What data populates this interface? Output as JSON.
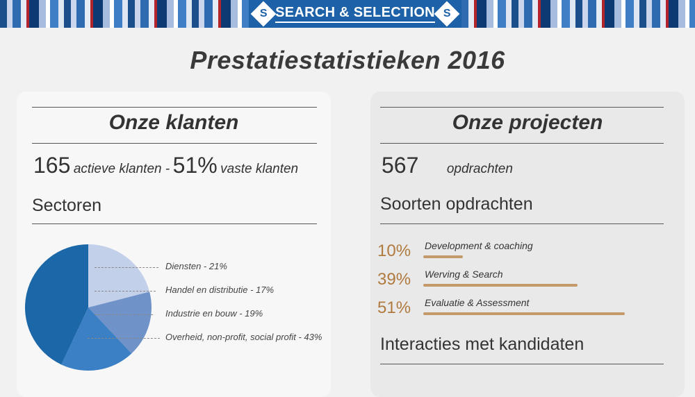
{
  "header": {
    "logo_text": "SEARCH & SELECTION",
    "logo_mark": "S",
    "logo_mark_icon": "diamond-s-icon"
  },
  "page_title": "Prestatiestatistieken 2016",
  "clients": {
    "title": "Onze klanten",
    "active_count": "165",
    "active_label": "actieve klanten -",
    "fixed_pct": "51%",
    "fixed_label": "vaste klanten",
    "sectors_heading": "Sectoren"
  },
  "projects": {
    "title": "Onze projecten",
    "count": "567",
    "count_label": "opdrachten",
    "types_heading": "Soorten opdrachten",
    "interactions_heading": "Interacties met kandidaten"
  },
  "chart_data": [
    {
      "type": "pie",
      "title": "Sectoren",
      "categories": [
        "Diensten",
        "Handel en distributie",
        "Industrie en bouw",
        "Overheid, non-profit, social profit"
      ],
      "values": [
        21,
        17,
        19,
        43
      ],
      "labels": [
        "Diensten - 21%",
        "Handel en distributie - 17%",
        "Industrie en bouw - 19%",
        "Overheid, non-profit, social profit - 43%"
      ],
      "colors": [
        "#c2d0ea",
        "#6f93c9",
        "#3b7fc4",
        "#1b67a8"
      ],
      "legend": "right"
    },
    {
      "type": "bar",
      "title": "Soorten opdrachten",
      "categories": [
        "Development & coaching",
        "Werving & Search",
        "Evaluatie & Assessment"
      ],
      "values": [
        10,
        39,
        51
      ],
      "value_labels": [
        "10%",
        "39%",
        "51%"
      ],
      "color": "#c49a6a",
      "xlim": [
        0,
        51
      ]
    }
  ]
}
